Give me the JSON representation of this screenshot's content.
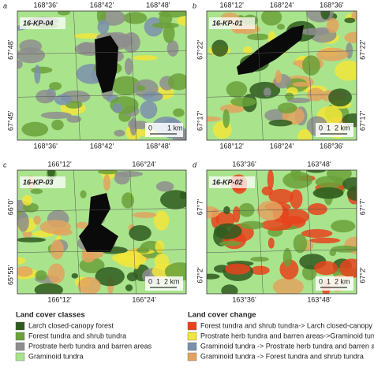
{
  "panels": [
    {
      "letter": "a",
      "site": "16-KP-04",
      "top_ticks": [
        "168°36'",
        "168°42'",
        "168°48'"
      ],
      "bottom_ticks": [
        "168°36'",
        "168°42'",
        "168°48'"
      ],
      "left_ticks": [
        "67°48'",
        "67°45'"
      ],
      "scale": [
        "0",
        "1 km"
      ]
    },
    {
      "letter": "b",
      "site": "16-KP-01",
      "top_ticks": [
        "168°12'",
        "168°24'",
        "168°36'"
      ],
      "bottom_ticks": [
        "168°12'",
        "168°24'",
        "168°36'"
      ],
      "left_ticks": [
        "67°22'",
        "67°17'"
      ],
      "right_ticks": [
        "67°22'",
        "67°17'"
      ],
      "scale": [
        "0",
        "1",
        "2 km"
      ]
    },
    {
      "letter": "c",
      "site": "16-KP-03",
      "top_ticks": [
        "166°12'",
        "166°24'"
      ],
      "bottom_ticks": [
        "166°12'",
        "166°24'"
      ],
      "left_ticks": [
        "66°0'",
        "65°55'"
      ],
      "scale": [
        "0",
        "1",
        "2 km"
      ]
    },
    {
      "letter": "d",
      "site": "16-KP-02",
      "top_ticks": [
        "163°36'",
        "163°48'"
      ],
      "bottom_ticks": [
        "163°36'",
        "163°48'"
      ],
      "left_ticks": [
        "67°7'",
        "67°2'"
      ],
      "right_ticks": [
        "67°7'",
        "67°2'"
      ],
      "scale": [
        "0",
        "1",
        "2 km"
      ]
    }
  ],
  "legend": {
    "classes": {
      "title": "Land cover classes",
      "items": [
        {
          "label": "Larch closed-canopy forest",
          "color": "#2f5a1e"
        },
        {
          "label": "Forest tundra and shrub tundra",
          "color": "#6ba13a"
        },
        {
          "label": "Prostrate herb tundra and barren areas",
          "color": "#8e8e8e"
        },
        {
          "label": "Graminoid tundra",
          "color": "#a9e38c"
        }
      ]
    },
    "change": {
      "title": "Land cover change",
      "items": [
        {
          "label": "Forest tundra and shrub tundra-> Larch closed-canopy forest",
          "color": "#e8431c"
        },
        {
          "label": "Prostrate herb tundra and barren areas->Graminoid tundra",
          "color": "#f2e63a"
        },
        {
          "label": "Graminoid tundra -> Prostrate herb tundra and barren areas",
          "color": "#7b91ab"
        },
        {
          "label": "Graminoid tundra -> Forest tundra and shrub tundra",
          "color": "#e3a35f"
        }
      ]
    }
  }
}
